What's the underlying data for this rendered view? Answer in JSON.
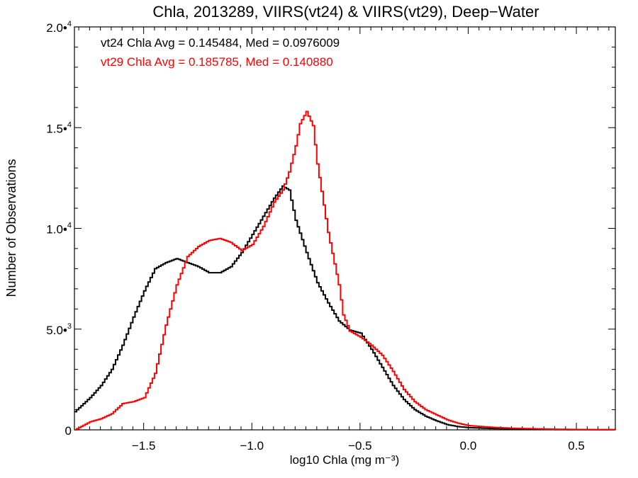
{
  "chart_data": {
    "type": "line",
    "title": "Chla, 2013289, VIIRS(vt24) & VIIRS(vt29), Deep−Water",
    "xlabel": "log10 Chla (mg m⁻³)",
    "ylabel": "Number of Observations",
    "xlim": [
      -1.82,
      0.68
    ],
    "ylim": [
      0,
      20000
    ],
    "x_ticks": [
      {
        "value": -1.5,
        "label": "−1.5"
      },
      {
        "value": -1.0,
        "label": "−1.0"
      },
      {
        "value": -0.5,
        "label": "−0.5"
      },
      {
        "value": 0.0,
        "label": "0.0"
      },
      {
        "value": 0.5,
        "label": "0.5"
      }
    ],
    "y_ticks": [
      {
        "value": 0,
        "mant": "0",
        "exp": ""
      },
      {
        "value": 5000,
        "mant": "5.0•",
        "exp": "3"
      },
      {
        "value": 10000,
        "mant": "1.0•",
        "exp": "4"
      },
      {
        "value": 15000,
        "mant": "1.5•",
        "exp": "4"
      },
      {
        "value": 20000,
        "mant": "2.0•",
        "exp": "4"
      }
    ],
    "annotations": [
      {
        "text": "vt24 Chla Avg = 0.145484, Med = 0.0976009",
        "color": "#000000"
      },
      {
        "text": "vt29 Chla Avg = 0.185785, Med = 0.140880",
        "color": "#ff0000"
      }
    ],
    "series": [
      {
        "color": "#000000",
        "x": [
          -1.82,
          -1.75,
          -1.7,
          -1.65,
          -1.6,
          -1.55,
          -1.5,
          -1.45,
          -1.4,
          -1.35,
          -1.3,
          -1.25,
          -1.2,
          -1.15,
          -1.1,
          -1.05,
          -1.0,
          -0.95,
          -0.9,
          -0.86,
          -0.83,
          -0.8,
          -0.75,
          -0.7,
          -0.65,
          -0.6,
          -0.55,
          -0.5,
          -0.45,
          -0.4,
          -0.35,
          -0.3,
          -0.25,
          -0.2,
          -0.15,
          -0.1,
          -0.05,
          0.0,
          0.1,
          0.2,
          0.3,
          0.4,
          0.5,
          0.6,
          0.68
        ],
        "y": [
          900,
          1600,
          2200,
          3000,
          4200,
          5600,
          6900,
          8000,
          8300,
          8500,
          8300,
          8100,
          7800,
          7800,
          8100,
          8800,
          9700,
          10600,
          11500,
          12100,
          11900,
          10400,
          8800,
          7300,
          6300,
          5400,
          4950,
          4800,
          4000,
          3100,
          2200,
          1500,
          1000,
          680,
          450,
          260,
          160,
          110,
          70,
          45,
          25,
          15,
          10,
          8,
          5
        ]
      },
      {
        "color": "#ff0000",
        "x": [
          -1.82,
          -1.75,
          -1.7,
          -1.65,
          -1.6,
          -1.55,
          -1.5,
          -1.45,
          -1.4,
          -1.35,
          -1.3,
          -1.25,
          -1.2,
          -1.15,
          -1.1,
          -1.05,
          -1.0,
          -0.95,
          -0.9,
          -0.86,
          -0.83,
          -0.8,
          -0.78,
          -0.75,
          -0.72,
          -0.7,
          -0.65,
          -0.6,
          -0.58,
          -0.55,
          -0.5,
          -0.45,
          -0.4,
          -0.35,
          -0.3,
          -0.25,
          -0.2,
          -0.15,
          -0.1,
          -0.05,
          0.0,
          0.1,
          0.2,
          0.3,
          0.4,
          0.5,
          0.6,
          0.68
        ],
        "y": [
          0,
          400,
          550,
          800,
          1300,
          1400,
          1600,
          2800,
          5200,
          7200,
          8600,
          9100,
          9400,
          9500,
          9300,
          8900,
          9200,
          10100,
          11300,
          11900,
          12800,
          14100,
          15200,
          15800,
          15100,
          13200,
          9800,
          7200,
          5700,
          4900,
          4600,
          4200,
          3700,
          2900,
          2000,
          1400,
          1000,
          750,
          500,
          330,
          210,
          130,
          80,
          55,
          30,
          18,
          10,
          5
        ]
      }
    ]
  }
}
